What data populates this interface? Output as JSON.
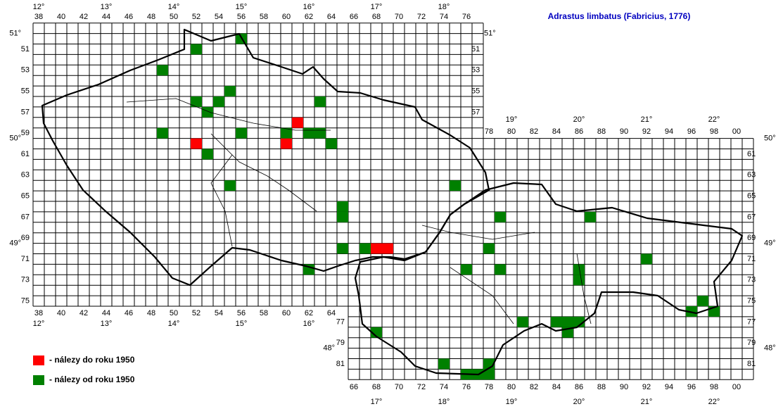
{
  "title": "Adrastus limbatus (Fabricius, 1776)",
  "legend": [
    {
      "label": "- nálezy do roku 1950",
      "color": "#ff0000"
    },
    {
      "label": "- nálezy od roku 1950",
      "color": "#008000"
    }
  ],
  "grid": {
    "columns_top": [
      38,
      40,
      42,
      44,
      46,
      48,
      50,
      52,
      54,
      56,
      58,
      60,
      62,
      64,
      66,
      68,
      70,
      72,
      74,
      76
    ],
    "columns_top_right": [
      78,
      80,
      82,
      84,
      86,
      88,
      90,
      92,
      94,
      96,
      98,
      {
        "value": 100,
        "label": "00"
      }
    ],
    "columns_bottom_left": [
      38,
      40,
      42,
      44,
      46,
      48,
      50,
      52,
      54,
      56,
      58,
      60,
      62,
      64
    ],
    "columns_bottom_right": [
      66,
      68,
      70,
      72,
      74,
      76,
      78,
      80,
      82,
      84,
      86,
      88,
      90,
      92,
      94,
      96,
      98,
      {
        "value": 100,
        "label": "00"
      }
    ],
    "rows_left": [
      51,
      53,
      55,
      57,
      59,
      61,
      63,
      65,
      67,
      69,
      71,
      73,
      75
    ],
    "rows_left_inner_right": [
      51,
      53,
      55,
      57
    ],
    "rows_right": [
      61,
      63,
      65,
      67,
      69,
      71,
      73,
      75,
      77,
      79,
      81
    ],
    "rows_lower_left": [
      77,
      79,
      81
    ],
    "longitude_top": [
      {
        "value": 12,
        "label": "12°"
      },
      {
        "value": 13,
        "label": "13°"
      },
      {
        "value": 14,
        "label": "14°"
      },
      {
        "value": 15,
        "label": "15°"
      },
      {
        "value": 16,
        "label": "16°"
      },
      {
        "value": 17,
        "label": "17°"
      },
      {
        "value": 18,
        "label": "18°"
      }
    ],
    "longitude_top_right": [
      {
        "value": 19,
        "label": "19°"
      },
      {
        "value": 20,
        "label": "20°"
      },
      {
        "value": 21,
        "label": "21°"
      },
      {
        "value": 22,
        "label": "22°"
      }
    ],
    "longitude_bottom_left": [
      {
        "value": 12,
        "label": "12°"
      },
      {
        "value": 13,
        "label": "13°"
      },
      {
        "value": 14,
        "label": "14°"
      },
      {
        "value": 15,
        "label": "15°"
      },
      {
        "value": 16,
        "label": "16°"
      }
    ],
    "longitude_bottom_right": [
      {
        "value": 17,
        "label": "17°"
      },
      {
        "value": 18,
        "label": "18°"
      },
      {
        "value": 19,
        "label": "19°"
      },
      {
        "value": 20,
        "label": "20°"
      },
      {
        "value": 21,
        "label": "21°"
      },
      {
        "value": 22,
        "label": "22°"
      }
    ],
    "latitude_left": [
      {
        "value": 51,
        "label": "51°"
      },
      {
        "value": 50,
        "label": "50°"
      },
      {
        "value": 49,
        "label": "49°"
      }
    ],
    "latitude_lower_left": [
      {
        "value": 48,
        "label": "48°"
      }
    ],
    "latitude_right_inner": [
      {
        "value": 51,
        "label": "51°"
      }
    ],
    "latitude_right": [
      {
        "value": 50,
        "label": "50°"
      },
      {
        "value": 49,
        "label": "49°"
      },
      {
        "value": 48,
        "label": "48°"
      }
    ]
  },
  "records": {
    "before_1950": [
      [
        61,
        58
      ],
      [
        60,
        60
      ],
      [
        52,
        60
      ],
      [
        68,
        70
      ],
      [
        69,
        70
      ]
    ],
    "since_1950": [
      [
        52,
        51
      ],
      [
        56,
        50
      ],
      [
        49,
        53
      ],
      [
        55,
        55
      ],
      [
        52,
        56
      ],
      [
        54,
        56
      ],
      [
        53,
        57
      ],
      [
        63,
        56
      ],
      [
        49,
        59
      ],
      [
        56,
        59
      ],
      [
        60,
        59
      ],
      [
        62,
        59
      ],
      [
        63,
        59
      ],
      [
        64,
        60
      ],
      [
        53,
        61
      ],
      [
        55,
        64
      ],
      [
        65,
        66
      ],
      [
        65,
        67
      ],
      [
        75,
        64
      ],
      [
        65,
        70
      ],
      [
        67,
        70
      ],
      [
        62,
        72
      ],
      [
        79,
        67
      ],
      [
        87,
        67
      ],
      [
        78,
        70
      ],
      [
        76,
        72
      ],
      [
        79,
        72
      ],
      [
        86,
        72
      ],
      [
        86,
        73
      ],
      [
        92,
        71
      ],
      [
        81,
        77
      ],
      [
        84,
        77
      ],
      [
        85,
        77
      ],
      [
        86,
        77
      ],
      [
        85,
        78
      ],
      [
        97,
        75
      ],
      [
        96,
        76
      ],
      [
        98,
        76
      ],
      [
        68,
        78
      ],
      [
        74,
        81
      ],
      [
        78,
        81
      ],
      [
        76,
        82
      ],
      [
        77,
        82
      ],
      [
        78,
        82
      ]
    ]
  }
}
